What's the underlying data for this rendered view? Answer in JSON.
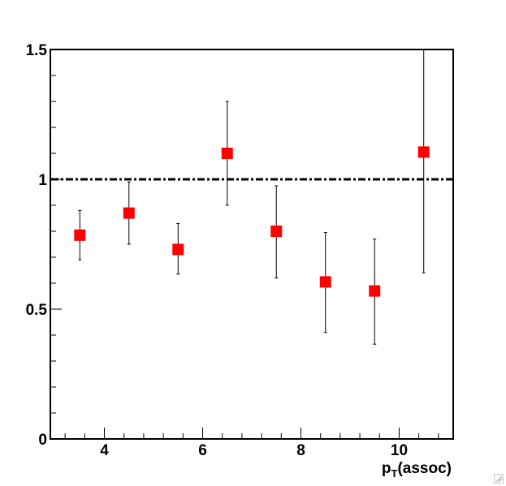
{
  "chart_data": {
    "type": "scatter",
    "title": "",
    "xlabel": {
      "main": "p",
      "sub": "T",
      "suffix": "(assoc)"
    },
    "ylabel": "",
    "xlim": [
      2.9,
      11.1
    ],
    "ylim": [
      0,
      1.5
    ],
    "x_ticks": [
      {
        "value": 4,
        "label": "4"
      },
      {
        "value": 6,
        "label": "6"
      },
      {
        "value": 8,
        "label": "8"
      },
      {
        "value": 10,
        "label": "10"
      }
    ],
    "y_ticks": [
      {
        "value": 0,
        "label": "0"
      },
      {
        "value": 0.5,
        "label": "0.5"
      },
      {
        "value": 1,
        "label": "1"
      },
      {
        "value": 1.5,
        "label": "1.5"
      }
    ],
    "x_minor_step": 0.4,
    "y_minor_step": 0.1,
    "reference_line": {
      "y": 1.0,
      "style": "dash-dot",
      "color": "#000000"
    },
    "marker_color": "#ff0000",
    "points": [
      {
        "x": 3.5,
        "y": 0.785,
        "ylow": 0.69,
        "yhigh": 0.88
      },
      {
        "x": 4.5,
        "y": 0.87,
        "ylow": 0.75,
        "yhigh": 0.99
      },
      {
        "x": 5.5,
        "y": 0.73,
        "ylow": 0.635,
        "yhigh": 0.83
      },
      {
        "x": 6.5,
        "y": 1.1,
        "ylow": 0.9,
        "yhigh": 1.3
      },
      {
        "x": 7.5,
        "y": 0.8,
        "ylow": 0.62,
        "yhigh": 0.975
      },
      {
        "x": 8.5,
        "y": 0.605,
        "ylow": 0.41,
        "yhigh": 0.795
      },
      {
        "x": 9.5,
        "y": 0.57,
        "ylow": 0.365,
        "yhigh": 0.77
      },
      {
        "x": 10.5,
        "y": 1.105,
        "ylow": 0.64,
        "yhigh": 1.5
      }
    ]
  }
}
